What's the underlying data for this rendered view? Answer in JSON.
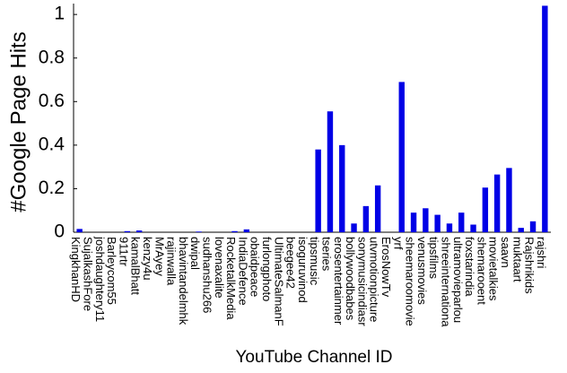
{
  "chart_data": {
    "type": "bar",
    "y_label": "#Google Page Hits",
    "x_label": "YouTube Channel ID",
    "categories": [
      "KingkhanHD",
      "SujalkashFore",
      "joshdaughtery11",
      "Barleycom55",
      "911rtr",
      "kamalBhatt",
      "kenzy4u",
      "MrAyey",
      "rajinwalla",
      "bhavintandelmhk",
      "dwipal",
      "sudhanshu266",
      "lovenaxalite",
      "RocketalkMedia",
      "IndiaDefence",
      "obaidpeace",
      "furlongphoto",
      "UltimateSalmanF",
      "beegee42",
      "isoguruvinod",
      "tipsmusic",
      "tseries",
      "erosentertainmer",
      "bollywoodbabes",
      "sonymusicindiasr",
      "utvmotionpicture",
      "ErosNowTv",
      "yrf",
      "sheemaroomovie",
      "venusmovies",
      "tipsfilms",
      "shreeinternationa",
      "ultramovieparlou",
      "foxstarindia",
      "shemarooent",
      "movietalkies",
      "saavn",
      "muktaart",
      "Rajshrikids",
      "rajshri"
    ],
    "values": [
      0.015,
      0,
      0,
      0,
      0.005,
      0.008,
      0,
      0,
      0,
      0,
      0.003,
      0,
      0,
      0.005,
      0.013,
      0,
      0,
      0,
      0,
      0,
      0.38,
      0.555,
      0.4,
      0.04,
      0.12,
      0.215,
      0,
      0.69,
      0.09,
      0.11,
      0.08,
      0.04,
      0.09,
      0.035,
      0.205,
      0.265,
      0.295,
      0.02,
      0.05,
      1.04
    ],
    "color": "#0000e6",
    "ylim": [
      0,
      1.05
    ],
    "yticks": [
      0,
      0.2,
      0.4,
      0.6,
      0.8,
      1
    ]
  }
}
